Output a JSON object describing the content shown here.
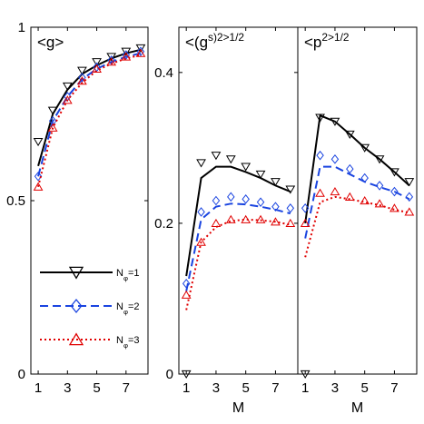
{
  "chart_data": [
    {
      "type": "line",
      "title": "<g>",
      "xlabel": "",
      "ylabel": "",
      "xlim": [
        0.5,
        8.5
      ],
      "ylim": [
        0,
        1
      ],
      "xticks": [
        1,
        3,
        5,
        7
      ],
      "yticks": [
        0,
        0.5,
        1
      ],
      "ytick_labels": [
        "0",
        "0.5",
        "1"
      ],
      "x": [
        1,
        2,
        3,
        4,
        5,
        6,
        7,
        8
      ],
      "series": [
        {
          "name": "N_φ=1",
          "color": "#000000",
          "dash": "solid",
          "marker": "triangle-down",
          "line": [
            0.6,
            0.75,
            0.82,
            0.865,
            0.89,
            0.91,
            0.925,
            0.935
          ],
          "markers": [
            0.67,
            0.76,
            0.83,
            0.875,
            0.9,
            0.915,
            0.93,
            0.94
          ]
        },
        {
          "name": "N_φ=2",
          "color": "#1a44e0",
          "dash": "dash",
          "marker": "diamond",
          "line": [
            0.57,
            0.73,
            0.8,
            0.85,
            0.88,
            0.9,
            0.915,
            0.925
          ],
          "markers": [
            0.57,
            0.73,
            0.8,
            0.855,
            0.885,
            0.905,
            0.92,
            0.93
          ]
        },
        {
          "name": "N_φ=3",
          "color": "#e00000",
          "dash": "dot",
          "marker": "triangle-up",
          "line": [
            0.54,
            0.71,
            0.79,
            0.84,
            0.875,
            0.895,
            0.91,
            0.92
          ],
          "markers": [
            0.54,
            0.71,
            0.79,
            0.845,
            0.88,
            0.9,
            0.915,
            0.925
          ]
        }
      ]
    },
    {
      "type": "line",
      "title": "<(g^s)^2>^1/2",
      "xlabel": "M",
      "ylabel": "",
      "xlim": [
        0.5,
        8.5
      ],
      "ylim": [
        0,
        0.46
      ],
      "xticks": [
        1,
        3,
        5,
        7
      ],
      "yticks": [
        0,
        0.2,
        0.4
      ],
      "ytick_labels": [
        "0",
        "0.2",
        "0.4"
      ],
      "x": [
        1,
        2,
        3,
        4,
        5,
        6,
        7,
        8
      ],
      "series": [
        {
          "name": "N_φ=1",
          "color": "#000000",
          "dash": "solid",
          "marker": "triangle-down",
          "line": [
            0.13,
            0.26,
            0.275,
            0.275,
            0.268,
            0.26,
            0.25,
            0.242
          ],
          "markers": [
            0.0,
            0.28,
            0.29,
            0.285,
            0.275,
            0.265,
            0.255,
            0.245
          ]
        },
        {
          "name": "N_φ=2",
          "color": "#1a44e0",
          "dash": "dash",
          "marker": "diamond",
          "line": [
            0.11,
            0.205,
            0.222,
            0.226,
            0.225,
            0.222,
            0.218,
            0.213
          ],
          "markers": [
            0.12,
            0.215,
            0.23,
            0.235,
            0.232,
            0.228,
            0.222,
            0.22
          ]
        },
        {
          "name": "N_φ=3",
          "color": "#e00000",
          "dash": "dot",
          "marker": "triangle-up",
          "line": [
            0.085,
            0.175,
            0.195,
            0.203,
            0.205,
            0.204,
            0.202,
            0.198
          ],
          "markers": [
            0.105,
            0.175,
            0.2,
            0.205,
            0.205,
            0.205,
            0.202,
            0.2
          ]
        }
      ]
    },
    {
      "type": "line",
      "title": "<p^2>^1/2",
      "xlabel": "M",
      "ylabel": "",
      "xlim": [
        0.5,
        8.5
      ],
      "ylim": [
        0,
        0.46
      ],
      "xticks": [
        1,
        3,
        5,
        7
      ],
      "yticks": [],
      "ytick_labels": [],
      "x": [
        1,
        2,
        3,
        4,
        5,
        6,
        7,
        8
      ],
      "series": [
        {
          "name": "N_φ=1",
          "color": "#000000",
          "dash": "solid",
          "marker": "triangle-down",
          "line": [
            0.2,
            0.343,
            0.335,
            0.318,
            0.3,
            0.285,
            0.268,
            0.25
          ],
          "markers": [
            0.0,
            0.34,
            0.335,
            0.318,
            0.3,
            0.285,
            0.268,
            0.255
          ]
        },
        {
          "name": "N_φ=2",
          "color": "#1a44e0",
          "dash": "dash",
          "marker": "diamond",
          "line": [
            0.18,
            0.275,
            0.275,
            0.265,
            0.255,
            0.248,
            0.242,
            0.232
          ],
          "markers": [
            0.22,
            0.29,
            0.285,
            0.272,
            0.26,
            0.25,
            0.242,
            0.235
          ]
        },
        {
          "name": "N_φ=3",
          "color": "#e00000",
          "dash": "dot",
          "marker": "triangle-up",
          "line": [
            0.155,
            0.228,
            0.235,
            0.232,
            0.228,
            0.224,
            0.218,
            0.214
          ],
          "markers": [
            0.2,
            0.24,
            0.242,
            0.235,
            0.23,
            0.226,
            0.22,
            0.215
          ]
        }
      ]
    }
  ],
  "legend": {
    "placement": "panel-1 lower-left",
    "entries": [
      {
        "text": "N_φ=1"
      },
      {
        "text": "N_φ=2"
      },
      {
        "text": "N_φ=3"
      }
    ]
  }
}
